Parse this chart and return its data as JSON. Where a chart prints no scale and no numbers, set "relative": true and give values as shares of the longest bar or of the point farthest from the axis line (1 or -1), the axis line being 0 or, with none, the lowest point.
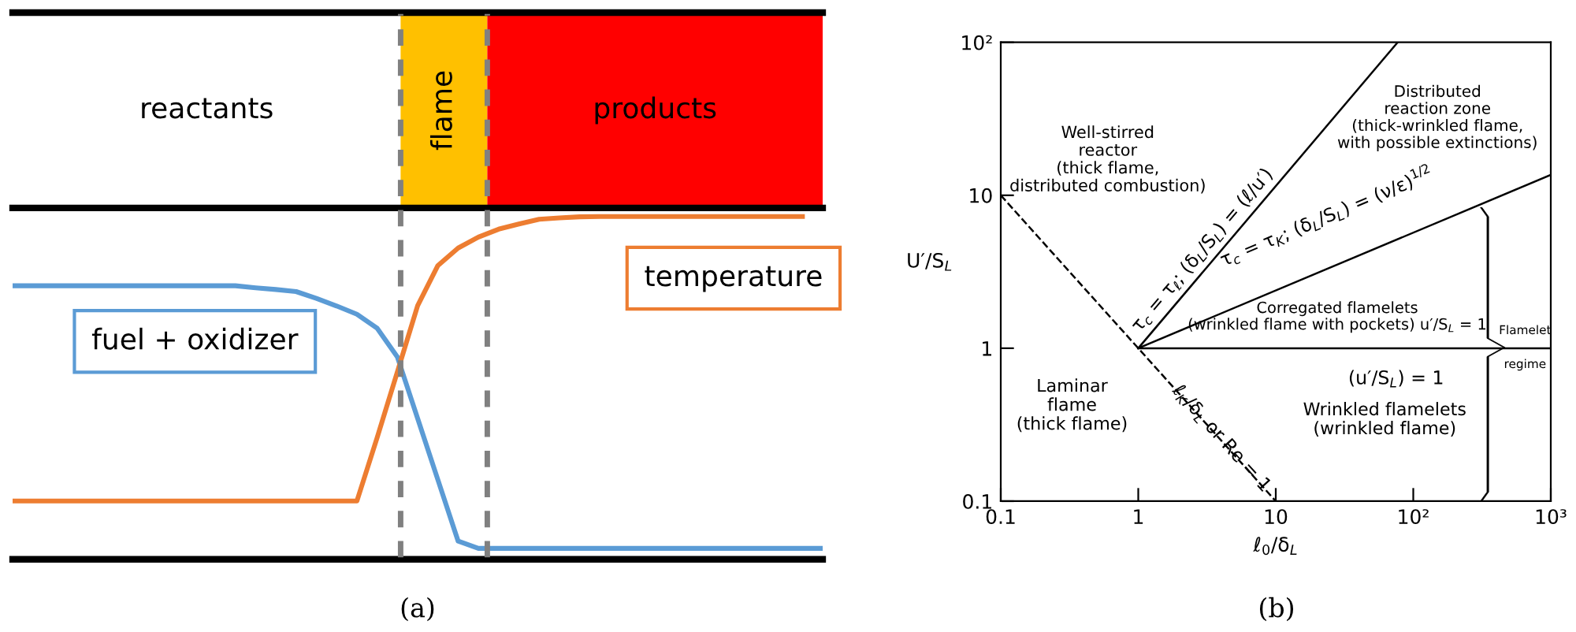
{
  "chart_data": [
    {
      "type": "other",
      "annotations": [
        "reactants",
        "flame",
        "products"
      ]
    },
    {
      "type": "line",
      "relative": true,
      "categories": [
        null,
        null,
        null,
        null,
        null,
        null,
        null,
        null,
        null,
        null,
        null,
        null,
        null,
        null,
        null,
        null,
        null,
        null,
        null,
        null,
        null,
        null,
        null,
        null,
        null,
        null,
        null,
        null,
        null,
        null,
        null,
        null,
        null,
        null,
        null,
        null,
        null,
        null,
        null,
        null,
        null
      ],
      "series": [
        {
          "name": "fuel + oxidizer",
          "color": "#5b9bd5",
          "values": [
            0.798,
            0.798,
            0.798,
            0.798,
            0.798,
            0.798,
            0.798,
            0.798,
            0.798,
            0.798,
            0.798,
            0.798,
            0.792,
            0.787,
            0.781,
            0.761,
            0.739,
            0.715,
            0.674,
            0.59,
            0.411,
            0.232,
            0.053,
            0.032,
            0.032,
            0.032,
            0.032,
            0.032,
            0.032,
            0.032,
            0.032,
            0.032,
            0.032,
            0.032,
            0.032,
            0.032,
            0.032,
            0.032,
            0.032,
            0.032,
            0.032
          ]
        },
        {
          "name": "temperature",
          "color": "#ed7d31",
          "values": [
            0.17,
            0.17,
            0.17,
            0.17,
            0.17,
            0.17,
            0.17,
            0.17,
            0.17,
            0.17,
            0.17,
            0.17,
            0.17,
            0.17,
            0.17,
            0.17,
            0.17,
            0.17,
            0.355,
            0.547,
            0.74,
            0.857,
            0.908,
            0.94,
            0.963,
            0.978,
            0.992,
            0.996,
            0.999,
            1.0,
            1.0,
            1.0,
            1.0,
            1.0,
            1.0,
            1.0,
            1.0,
            1.0,
            1.0,
            1.0,
            null
          ]
        }
      ],
      "annotations": [
        "(a)"
      ]
    },
    {
      "type": "line",
      "log": "xy",
      "xlim": [
        0.1,
        1000
      ],
      "ylim": [
        0.1,
        100
      ],
      "xticks": [
        0.1,
        1,
        10,
        {
          "value": 100,
          "label": "10²"
        },
        {
          "value": 1000,
          "label": "10³"
        }
      ],
      "yticks": [
        0.1,
        1,
        10,
        {
          "value": 100,
          "label": "10²"
        }
      ],
      "xlabel": "ℓ$_{0}$/δ$_{L}$",
      "ylabel": "U′/S$_{L}$",
      "series": [
        {
          "name": "ℓ$_{K}$/δ$_{L}$ or Re = 1",
          "color": "#000000",
          "line_style": "dashed",
          "x": [
            0.1,
            10
          ],
          "values": [
            10,
            0.1
          ]
        },
        {
          "name": "(u′/S$_{L}$) = 1",
          "color": "#000000",
          "x": [
            1,
            1000
          ],
          "values": [
            1,
            1
          ]
        },
        {
          "name": "τ$_{c}$ = τ$_{K}$; (δ$_{L}$/S$_{L}$) = (ν/ε)$^{1/2}$",
          "color": "#000000",
          "x": [
            1,
            1000
          ],
          "values": [
            1,
            13.6
          ]
        },
        {
          "name": "τ$_{c}$ = τ$_{ℓ}$; (δ$_{L}$/S$_{L}$) = (ℓ/u′)",
          "color": "#000000",
          "x": [
            1,
            77
          ],
          "values": [
            1,
            100
          ]
        }
      ],
      "annotations": [
        "Well-stirred\nreactor\n(thick flame,\ndistributed combustion)",
        "Distributed\nreaction zone\n(thick-wrinkled flame,\nwith possible extinctions)",
        "Corregated flamelets\n(wrinkled flame with pockets) u′/S$_{L}$ = 1",
        "Laminar\nflame\n(thick flame)",
        "Wrinkled flamelets\n(wrinkled flame)",
        "Flamelet",
        "regime",
        "(b)"
      ]
    }
  ]
}
